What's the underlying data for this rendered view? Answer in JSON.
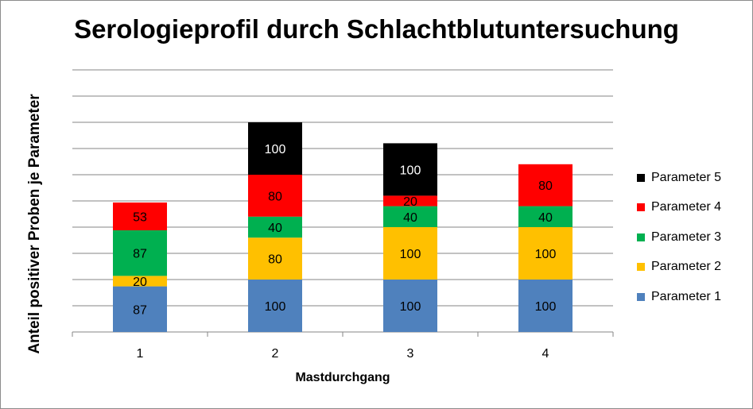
{
  "chart_data": {
    "type": "bar",
    "stacked": true,
    "title": "Serologieprofil durch Schlachtblutuntersuchung",
    "xlabel": "Mastdurchgang",
    "ylabel": "Anteil positiver Proben je Parameter",
    "categories": [
      "1",
      "2",
      "3",
      "4"
    ],
    "ylim": [
      0,
      500
    ],
    "y_tick_step": 50,
    "y_tick_labels_shown": false,
    "grid": true,
    "legend_position": "right",
    "series": [
      {
        "name": "Parameter 1",
        "color": "#4f81bd",
        "values": [
          87,
          100,
          100,
          100
        ]
      },
      {
        "name": "Parameter 2",
        "color": "#ffc000",
        "values": [
          20,
          80,
          100,
          100
        ]
      },
      {
        "name": "Parameter 3",
        "color": "#00b050",
        "values": [
          87,
          40,
          40,
          40
        ]
      },
      {
        "name": "Parameter 4",
        "color": "#ff0000",
        "values": [
          53,
          80,
          20,
          80
        ]
      },
      {
        "name": "Parameter 5",
        "color": "#000000",
        "values": [
          null,
          100,
          100,
          null
        ]
      }
    ]
  }
}
